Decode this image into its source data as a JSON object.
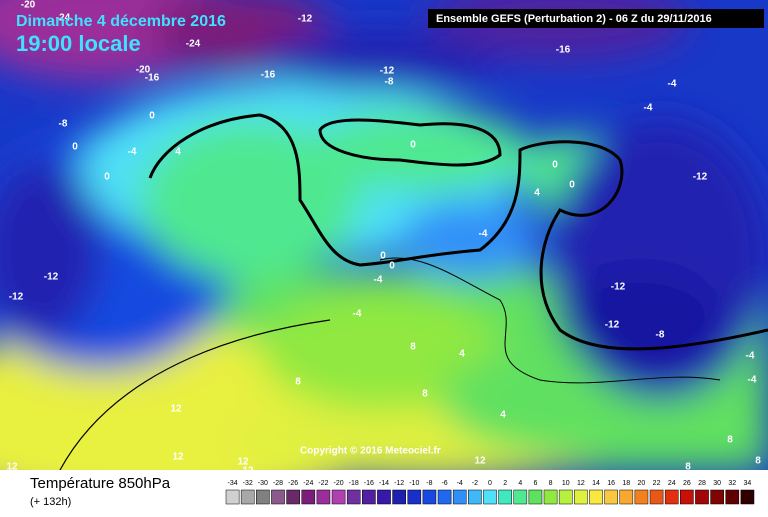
{
  "header": {
    "date": "Dimanche 4 décembre 2016",
    "time": "19:00 locale",
    "run": "Ensemble GEFS  (Perturbation 2)  -  06 Z du 29/11/2016"
  },
  "copyright": "Copyright © 2016 Meteociel.fr",
  "footer": {
    "title": "Température 850hPa",
    "lead": "(+ 132h)"
  },
  "scale": {
    "values": [
      -34,
      -32,
      -30,
      -28,
      -26,
      -24,
      -22,
      -20,
      -18,
      -16,
      -14,
      -12,
      -10,
      -8,
      -6,
      -4,
      -2,
      0,
      2,
      4,
      6,
      8,
      10,
      12,
      14,
      16,
      18,
      20,
      22,
      24,
      26,
      28,
      30,
      32,
      34
    ],
    "colors": [
      "#d0d0d0",
      "#a8a8a8",
      "#808080",
      "#8a5a8a",
      "#6a2a6a",
      "#7a1e7a",
      "#9a2e9a",
      "#b040b0",
      "#7030a0",
      "#5020a0",
      "#3818a8",
      "#2020b0",
      "#1830c8",
      "#1848e0",
      "#2068f0",
      "#3090f8",
      "#40b8f8",
      "#50e0f8",
      "#40e8c0",
      "#50e890",
      "#60e060",
      "#90e840",
      "#b8f040",
      "#e0f040",
      "#f8e840",
      "#f8c840",
      "#f8a830",
      "#f08020",
      "#e85818",
      "#e03010",
      "#c81008",
      "#a00808",
      "#800404",
      "#600000",
      "#300000"
    ]
  },
  "contour_labels": [
    -20,
    -24,
    -12,
    -24,
    -16,
    -20,
    -16,
    -16,
    -12,
    -8,
    -4,
    0,
    -8,
    -4,
    0,
    -4,
    4,
    0,
    0,
    0,
    4,
    0,
    -12,
    -4,
    0,
    0,
    -12,
    -12,
    -4,
    -12,
    -4,
    -12,
    -8,
    8,
    4,
    8,
    -4,
    -4,
    8,
    12,
    4,
    12,
    12,
    12,
    12,
    12,
    8,
    8,
    8
  ]
}
